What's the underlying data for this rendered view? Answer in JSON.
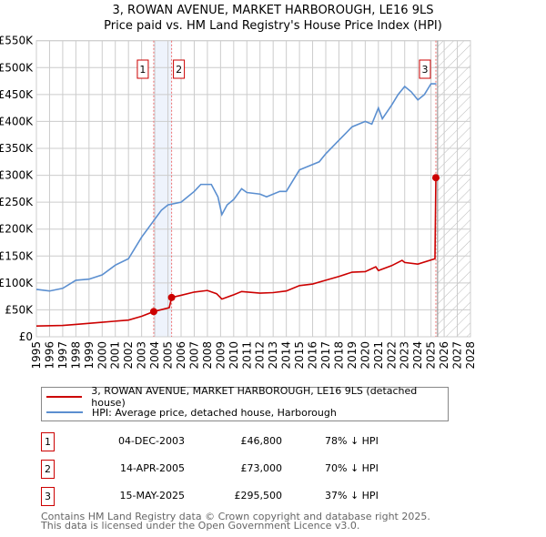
{
  "chart_data": {
    "type": "line",
    "title": "3, ROWAN AVENUE, MARKET HARBOROUGH, LE16 9LS",
    "subtitle": "Price paid vs. HM Land Registry's House Price Index (HPI)",
    "xlim": [
      1995,
      2028
    ],
    "ylim": [
      0,
      550000
    ],
    "yticks": [
      0,
      50000,
      100000,
      150000,
      200000,
      250000,
      300000,
      350000,
      400000,
      450000,
      500000,
      550000
    ],
    "ytick_labels": [
      "£0",
      "£50K",
      "£100K",
      "£150K",
      "£200K",
      "£250K",
      "£300K",
      "£350K",
      "£400K",
      "£450K",
      "£500K",
      "£550K"
    ],
    "xticks": [
      "1995",
      "1996",
      "1997",
      "1998",
      "1999",
      "2000",
      "2001",
      "2002",
      "2003",
      "2004",
      "2005",
      "2006",
      "2007",
      "2008",
      "2009",
      "2010",
      "2011",
      "2012",
      "2013",
      "2014",
      "2015",
      "2016",
      "2017",
      "2018",
      "2019",
      "2020",
      "2021",
      "2022",
      "2023",
      "2024",
      "2025",
      "2026",
      "2027",
      "2028"
    ],
    "grid": true,
    "forecast_start": 2025.5,
    "shaded_span": [
      2003.92,
      2005.28
    ],
    "series": [
      {
        "name": "3, ROWAN AVENUE, MARKET HARBOROUGH, LE16 9LS (detached house)",
        "color": "#cc0000",
        "x": [
          1995,
          1997,
          1998,
          2000,
          2002,
          2003,
          2003.92,
          2005.1,
          2005.28,
          2006,
          2007,
          2008,
          2008.7,
          2009.1,
          2010,
          2010.6,
          2012,
          2013,
          2014,
          2015,
          2016,
          2017,
          2018,
          2019,
          2020,
          2020.8,
          2021,
          2022,
          2022.8,
          2023,
          2024,
          2025.3,
          2025.37
        ],
        "y": [
          20000,
          21000,
          23000,
          27000,
          31000,
          38000,
          46800,
          54000,
          73000,
          77000,
          83000,
          86000,
          80000,
          70000,
          78000,
          84000,
          81000,
          82000,
          85000,
          95000,
          98000,
          105000,
          112000,
          120000,
          121000,
          130000,
          123000,
          132000,
          142000,
          138000,
          135000,
          145000,
          295500
        ]
      },
      {
        "name": "HPI: Average price, detached house, Harborough",
        "color": "#5b8fd0",
        "x": [
          1995,
          1996,
          1997,
          1998,
          1999,
          2000,
          2001,
          2002,
          2003,
          2003.9,
          2004.5,
          2005,
          2006,
          2007,
          2007.5,
          2008.3,
          2008.8,
          2009.1,
          2009.5,
          2010,
          2010.6,
          2011,
          2012,
          2012.5,
          2013.5,
          2014,
          2014.5,
          2015,
          2016,
          2016.5,
          2017,
          2018,
          2019,
          2020,
          2020.5,
          2021,
          2021.3,
          2022,
          2022.5,
          2023,
          2023.5,
          2024,
          2024.5,
          2025,
          2025.4
        ],
        "y": [
          88000,
          85000,
          90000,
          105000,
          107000,
          115000,
          133000,
          145000,
          185000,
          215000,
          235000,
          245000,
          250000,
          270000,
          283000,
          283000,
          260000,
          227000,
          245000,
          255000,
          275000,
          268000,
          265000,
          260000,
          270000,
          270000,
          290000,
          310000,
          320000,
          325000,
          340000,
          365000,
          390000,
          400000,
          395000,
          425000,
          405000,
          430000,
          450000,
          465000,
          455000,
          440000,
          450000,
          470000,
          470000
        ]
      }
    ],
    "markers": [
      {
        "label": "1",
        "x": 2003.92,
        "y": 46800
      },
      {
        "label": "2",
        "x": 2005.28,
        "y": 73000
      },
      {
        "label": "3",
        "x": 2025.37,
        "y": 295500
      }
    ]
  },
  "legend": [
    "3, ROWAN AVENUE, MARKET HARBOROUGH, LE16 9LS (detached house)",
    "HPI: Average price, detached house, Harborough"
  ],
  "transactions": [
    {
      "n": "1",
      "date": "04-DEC-2003",
      "price": "£46,800",
      "hpi": "78% ↓ HPI"
    },
    {
      "n": "2",
      "date": "14-APR-2005",
      "price": "£73,000",
      "hpi": "70% ↓ HPI"
    },
    {
      "n": "3",
      "date": "15-MAY-2025",
      "price": "£295,500",
      "hpi": "37% ↓ HPI"
    }
  ],
  "footer": [
    "Contains HM Land Registry data © Crown copyright and database right 2025.",
    "This data is licensed under the Open Government Licence v3.0."
  ]
}
